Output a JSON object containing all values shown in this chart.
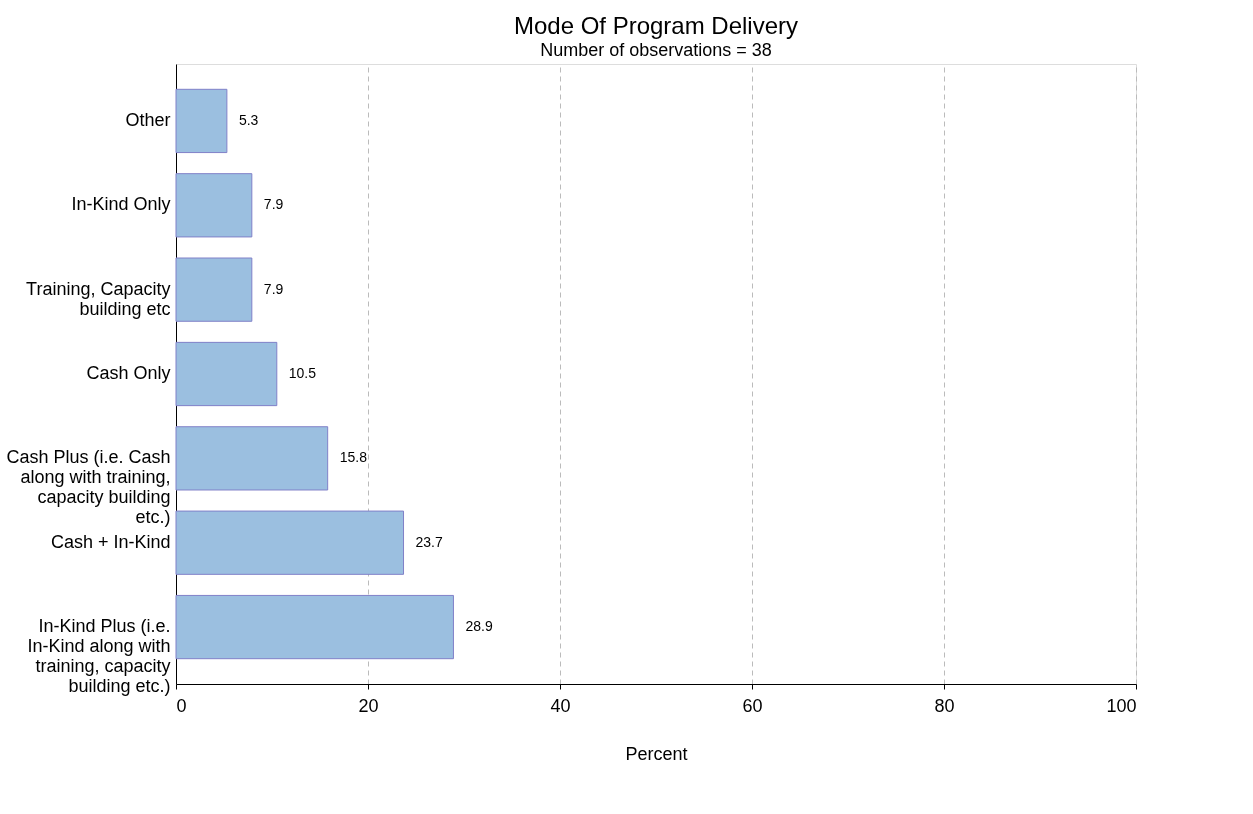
{
  "chart_data": {
    "type": "bar",
    "orientation": "horizontal",
    "title": "Mode Of Program Delivery",
    "subtitle": "Number of observations = 38",
    "xlabel": "Percent",
    "categories": [
      "Other",
      "In-Kind Only",
      "Training, Capacity building etc",
      "Cash Only",
      "Cash Plus (i.e. Cash along with training, capacity building etc.)",
      "Cash + In-Kind",
      "In-Kind Plus (i.e. In-Kind along with training, capacity building etc.)"
    ],
    "values": [
      5.3,
      7.9,
      7.9,
      10.5,
      15.8,
      23.7,
      28.9
    ],
    "color": "#9bbfe0",
    "xlim": [
      0,
      100
    ],
    "xticks": [
      0,
      20,
      40,
      60,
      80,
      100
    ],
    "grid": "x",
    "data_labels": true
  }
}
